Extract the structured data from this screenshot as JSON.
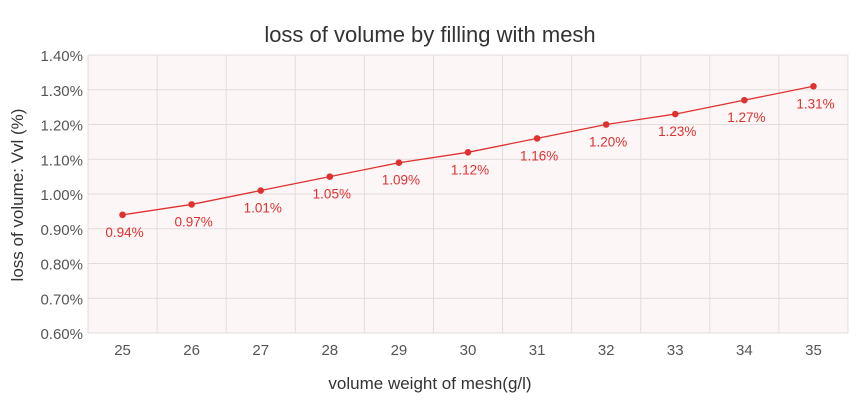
{
  "chart_data": {
    "type": "line",
    "title": "loss of volume by filling with mesh",
    "xlabel": "volume weight of mesh(g/l)",
    "ylabel": "loss of volume: Vvl (%)",
    "categories": [
      "25",
      "26",
      "27",
      "28",
      "29",
      "30",
      "31",
      "32",
      "33",
      "34",
      "35"
    ],
    "series": [
      {
        "name": "loss of volume",
        "values": [
          0.94,
          0.97,
          1.01,
          1.05,
          1.09,
          1.12,
          1.16,
          1.2,
          1.23,
          1.27,
          1.31
        ],
        "labels": [
          "0.94%",
          "0.97%",
          "1.01%",
          "1.05%",
          "1.09%",
          "1.12%",
          "1.16%",
          "1.20%",
          "1.23%",
          "1.27%",
          "1.31%"
        ],
        "color": "#e03131"
      }
    ],
    "ylim": [
      0.6,
      1.4
    ],
    "yticks": [
      0.6,
      0.7,
      0.8,
      0.9,
      1.0,
      1.1,
      1.2,
      1.3,
      1.4
    ],
    "ytick_labels": [
      "0.60%",
      "0.70%",
      "0.80%",
      "0.90%",
      "1.00%",
      "1.10%",
      "1.20%",
      "1.30%",
      "1.40%"
    ],
    "grid": true,
    "legend": "none",
    "plot_background": "#fdf6f6",
    "grid_color": "#e2dcdc"
  }
}
